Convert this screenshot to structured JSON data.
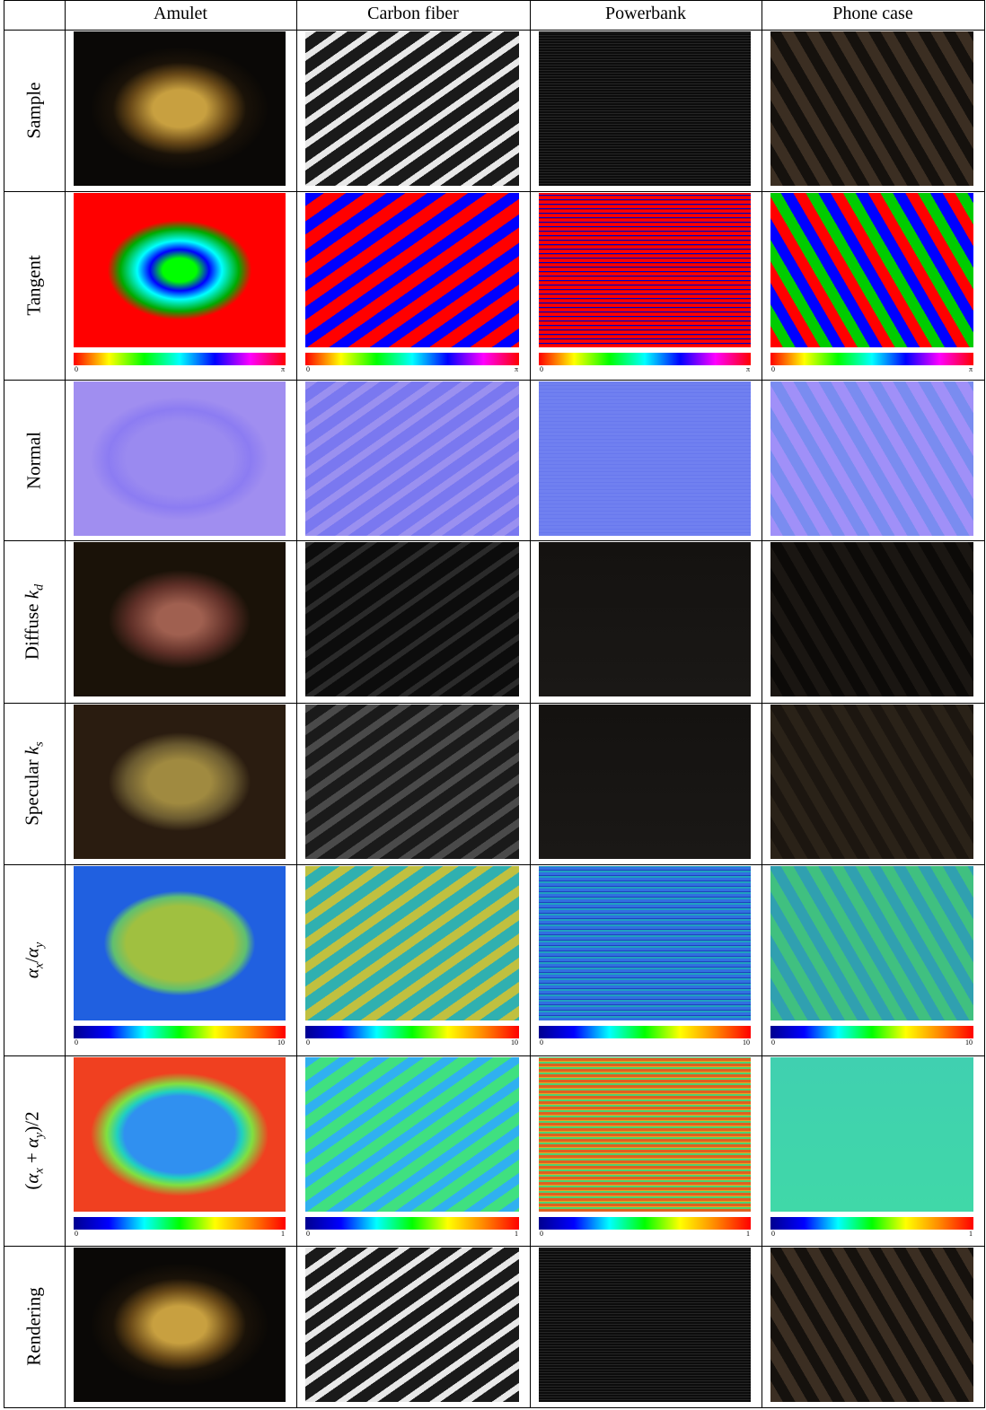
{
  "table": {
    "columns": [
      "Amulet",
      "Carbon fiber",
      "Powerbank",
      "Phone case"
    ],
    "rows": [
      {
        "label": [
          {
            "text": "Sample",
            "style": "normal"
          }
        ]
      },
      {
        "label": [
          {
            "text": "Tangent",
            "style": "normal"
          }
        ],
        "colorbar": [
          "0",
          "π"
        ]
      },
      {
        "label": [
          {
            "text": "Normal",
            "style": "normal"
          }
        ]
      },
      {
        "label": [
          {
            "text": "Diffuse ",
            "style": "normal"
          },
          {
            "text": "k",
            "style": "italic"
          },
          {
            "text": "d",
            "style": "sub"
          }
        ]
      },
      {
        "label": [
          {
            "text": "Specular ",
            "style": "normal"
          },
          {
            "text": "k",
            "style": "italic"
          },
          {
            "text": "s",
            "style": "sub"
          }
        ]
      },
      {
        "label": [
          {
            "text": "α",
            "style": "italic"
          },
          {
            "text": "x",
            "style": "sub"
          },
          {
            "text": "/",
            "style": "normal"
          },
          {
            "text": "α",
            "style": "italic"
          },
          {
            "text": "y",
            "style": "sub"
          }
        ],
        "colorbar": [
          "0",
          "10"
        ]
      },
      {
        "label": [
          {
            "text": "(",
            "style": "normal"
          },
          {
            "text": "α",
            "style": "italic"
          },
          {
            "text": "x",
            "style": "sub"
          },
          {
            "text": " + ",
            "style": "normal"
          },
          {
            "text": "α",
            "style": "italic"
          },
          {
            "text": "y",
            "style": "sub"
          },
          {
            "text": ")/2",
            "style": "normal"
          }
        ],
        "colorbar": [
          "0",
          "1"
        ]
      },
      {
        "label": [
          {
            "text": "Rendering",
            "style": "normal"
          }
        ]
      }
    ]
  }
}
